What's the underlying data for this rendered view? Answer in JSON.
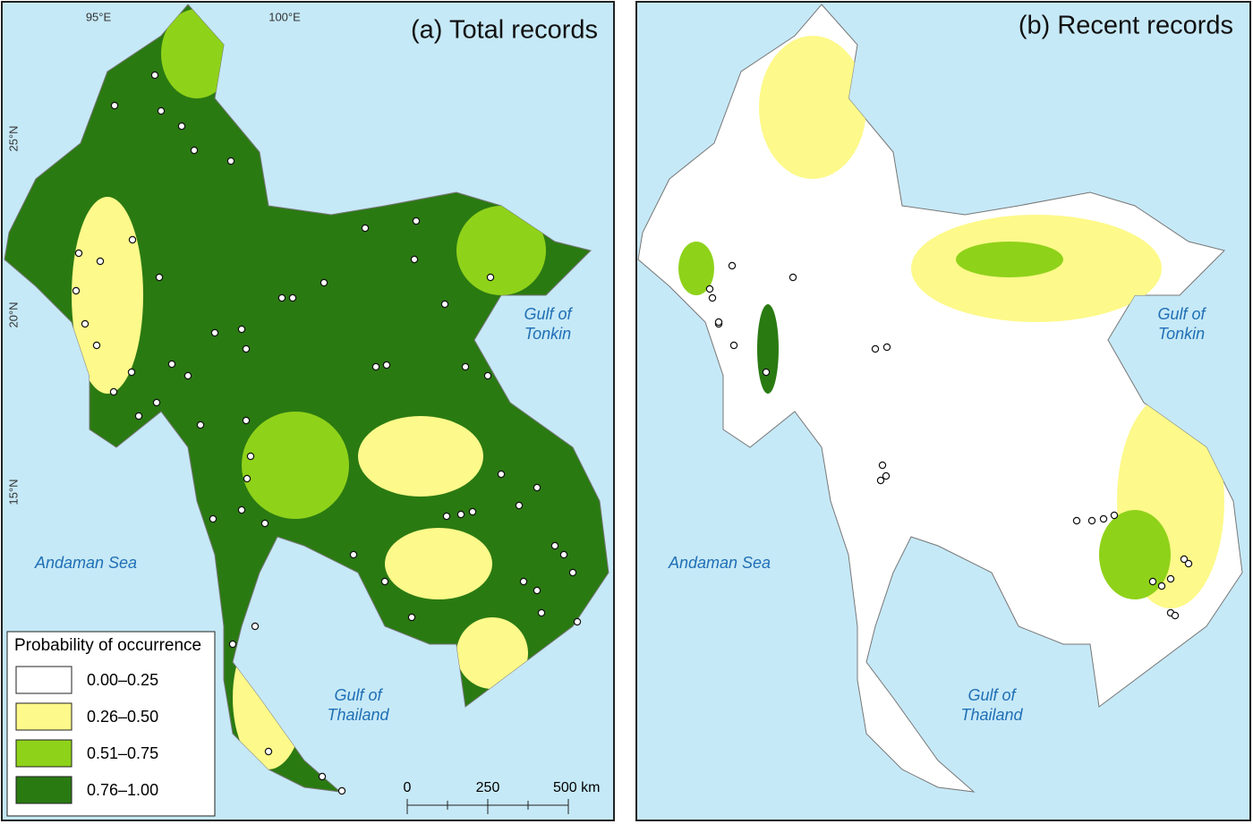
{
  "panels": [
    {
      "title": "(a) Total records",
      "labels": [
        "Gulf of",
        "Tonkin",
        "Andaman Sea",
        "Gulf of",
        "Thailand"
      ]
    },
    {
      "title": "(b) Recent records",
      "labels": [
        "Gulf of",
        "Tonkin",
        "Andaman Sea",
        "Gulf of",
        "Thailand"
      ]
    }
  ],
  "graticule": {
    "lon": [
      "95°E",
      "100°E"
    ],
    "lat": [
      "25°N",
      "20°N",
      "15°N"
    ]
  },
  "legend": {
    "title": "Probability of occurrence",
    "items": [
      {
        "label": "0.00–0.25",
        "color": "#ffffff"
      },
      {
        "label": "0.26–0.50",
        "color": "#fdf98a"
      },
      {
        "label": "0.51–0.75",
        "color": "#8fd21a"
      },
      {
        "label": "0.76–1.00",
        "color": "#2a7a12"
      }
    ]
  },
  "scale_bar": [
    "0",
    "250",
    "500 km"
  ]
}
